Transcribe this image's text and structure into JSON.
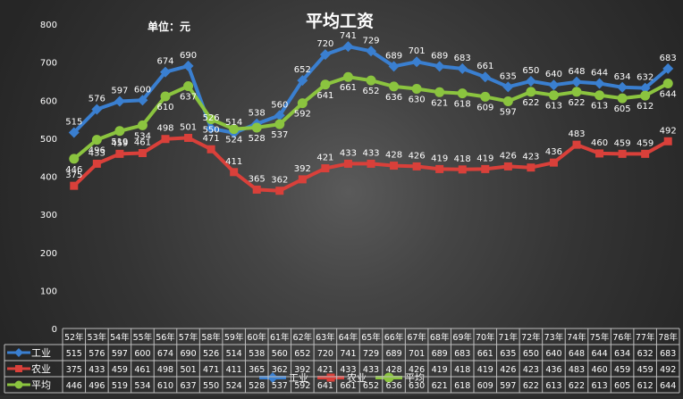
{
  "chart_data": {
    "type": "line",
    "title": "平均工资",
    "unit_label": "单位：元",
    "yticks": [
      "0",
      "100",
      "200",
      "300",
      "400",
      "500",
      "600",
      "700",
      "800"
    ],
    "ylim": [
      0,
      800
    ],
    "grid": false,
    "legend_position": "bottom",
    "categories": [
      "52年",
      "53年",
      "54年",
      "55年",
      "56年",
      "57年",
      "58年",
      "59年",
      "60年",
      "61年",
      "62年",
      "63年",
      "64年",
      "65年",
      "66年",
      "67年",
      "68年",
      "69年",
      "70年",
      "71年",
      "72年",
      "73年",
      "74年",
      "75年",
      "76年",
      "77年",
      "78年"
    ],
    "series": [
      {
        "name": "工业",
        "color": "#3a7fd0",
        "marker": "diamond",
        "values": [
          515,
          576,
          597,
          600,
          674,
          690,
          526,
          514,
          538,
          560,
          652,
          720,
          741,
          729,
          689,
          701,
          689,
          683,
          661,
          635,
          650,
          640,
          648,
          644,
          634,
          632,
          683
        ]
      },
      {
        "name": "农业",
        "color": "#d9403a",
        "marker": "square",
        "values": [
          375,
          433,
          459,
          461,
          498,
          501,
          471,
          411,
          365,
          362,
          392,
          421,
          433,
          433,
          428,
          426,
          419,
          418,
          419,
          426,
          423,
          436,
          483,
          460,
          459,
          459,
          492
        ]
      },
      {
        "name": "平均",
        "color": "#8bc43f",
        "marker": "circle",
        "values": [
          446,
          496,
          519,
          534,
          610,
          637,
          550,
          524,
          528,
          537,
          592,
          641,
          661,
          652,
          636,
          630,
          621,
          618,
          609,
          597,
          622,
          613,
          622,
          613,
          605,
          612,
          644
        ]
      }
    ]
  }
}
